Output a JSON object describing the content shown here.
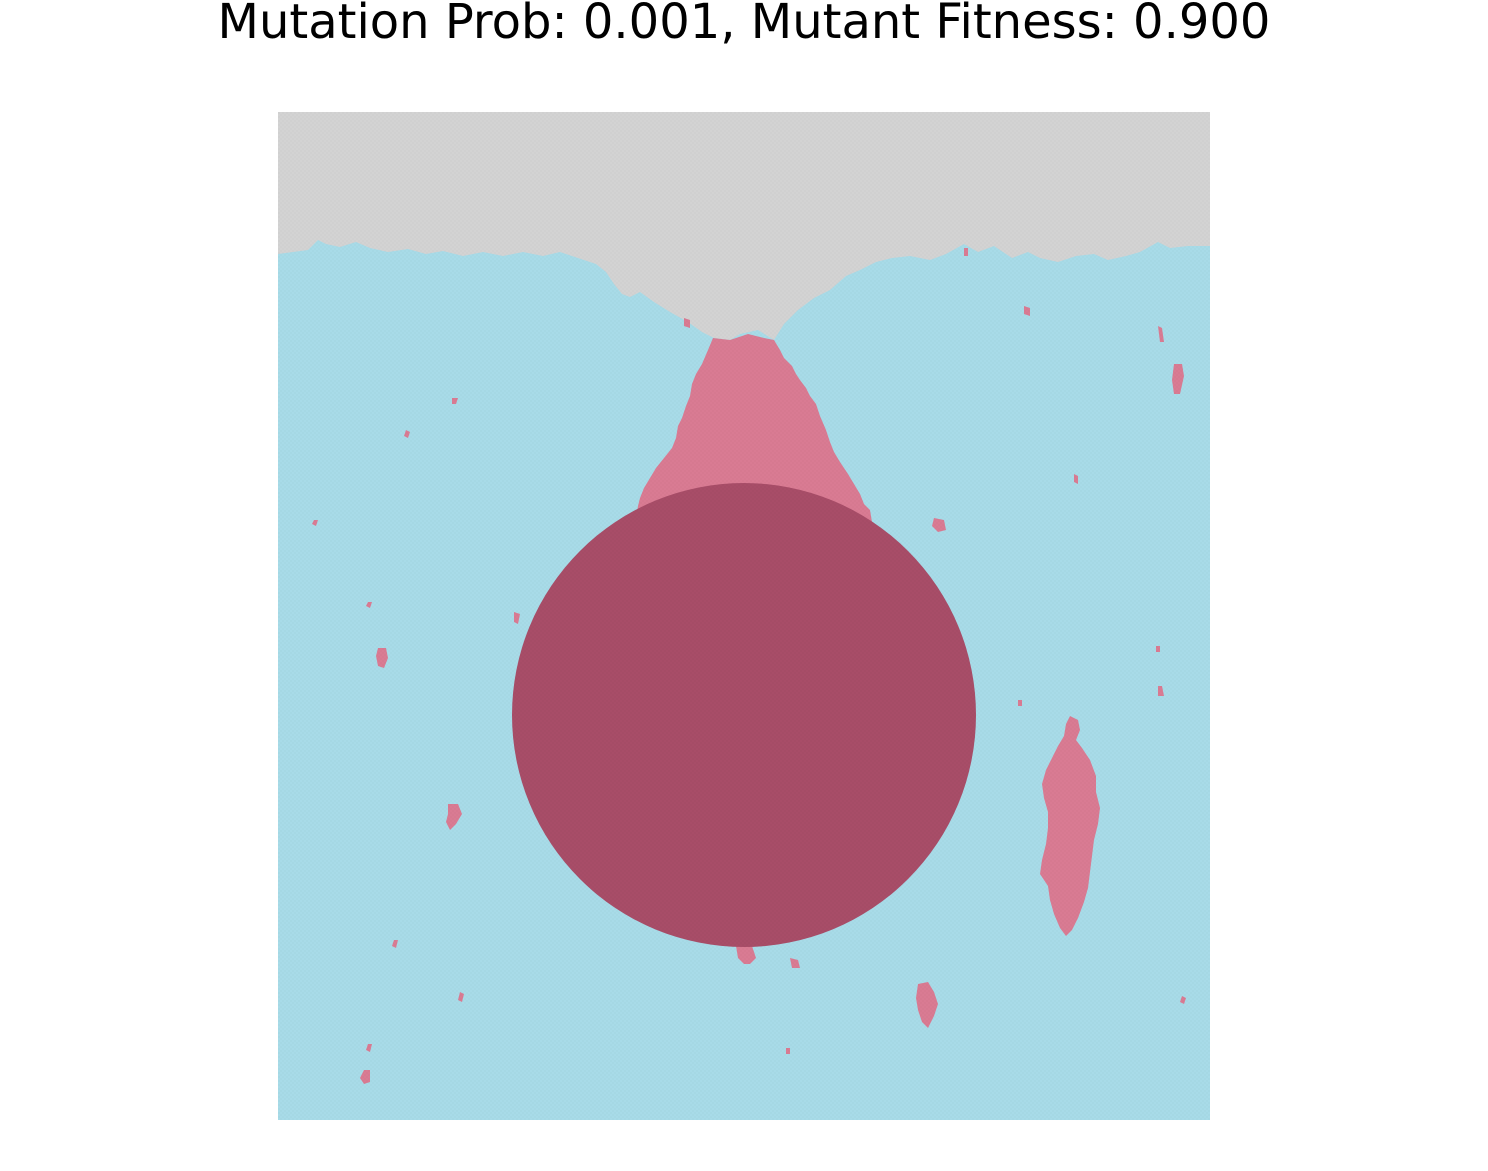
{
  "figure": {
    "title": "Mutation Prob: 0.001, Mutant Fitness: 0.900"
  },
  "lattice": {
    "colors": {
      "empty": "#d3d3d3",
      "wild_type": "#a8dbe8",
      "mutant_outside_obstacle": "#d97b93",
      "mutant_inside_obstacle": "#a84d68"
    }
  }
}
